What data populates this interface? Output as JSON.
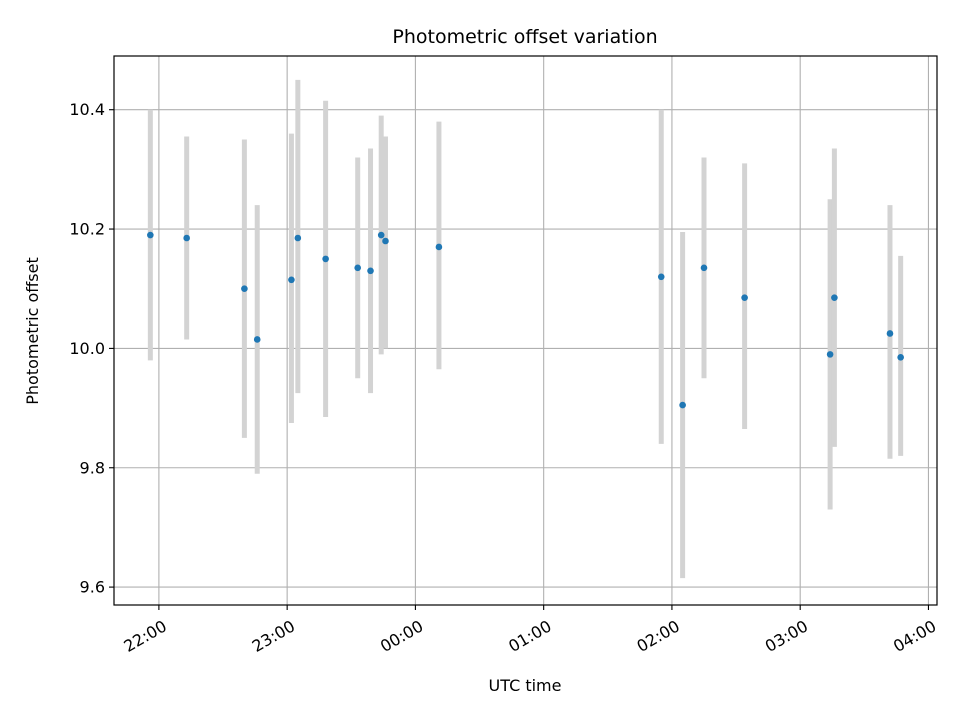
{
  "chart_data": {
    "type": "scatter",
    "title": "Photometric offset variation",
    "xlabel": "UTC time",
    "ylabel": "Photometric offset",
    "grid": true,
    "xlim": [
      "21:39",
      "04:04"
    ],
    "ylim": [
      9.57,
      10.49
    ],
    "x_ticks": [
      "22:00",
      "23:00",
      "00:00",
      "01:00",
      "02:00",
      "03:00",
      "04:00"
    ],
    "y_ticks": [
      9.6,
      9.8,
      10.0,
      10.2,
      10.4
    ],
    "colors": {
      "point": "#1f77b4",
      "errorbar": "#d3d3d3",
      "grid": "#b0b0b0"
    },
    "points": [
      {
        "x": "21:56",
        "y": 10.19,
        "ylow": 9.98,
        "yhigh": 10.4
      },
      {
        "x": "22:13",
        "y": 10.185,
        "ylow": 10.015,
        "yhigh": 10.355
      },
      {
        "x": "22:40",
        "y": 10.1,
        "ylow": 9.85,
        "yhigh": 10.35
      },
      {
        "x": "22:46",
        "y": 10.015,
        "ylow": 9.79,
        "yhigh": 10.24
      },
      {
        "x": "23:02",
        "y": 10.115,
        "ylow": 9.875,
        "yhigh": 10.36
      },
      {
        "x": "23:05",
        "y": 10.185,
        "ylow": 9.925,
        "yhigh": 10.45
      },
      {
        "x": "23:18",
        "y": 10.15,
        "ylow": 9.885,
        "yhigh": 10.415
      },
      {
        "x": "23:33",
        "y": 10.135,
        "ylow": 9.95,
        "yhigh": 10.32
      },
      {
        "x": "23:39",
        "y": 10.13,
        "ylow": 9.925,
        "yhigh": 10.335
      },
      {
        "x": "23:44",
        "y": 10.19,
        "ylow": 9.99,
        "yhigh": 10.39
      },
      {
        "x": "23:46",
        "y": 10.18,
        "ylow": 10.0,
        "yhigh": 10.355
      },
      {
        "x": "00:11",
        "y": 10.17,
        "ylow": 9.965,
        "yhigh": 10.38
      },
      {
        "x": "01:55",
        "y": 10.12,
        "ylow": 9.84,
        "yhigh": 10.4
      },
      {
        "x": "02:05",
        "y": 9.905,
        "ylow": 9.615,
        "yhigh": 10.195
      },
      {
        "x": "02:15",
        "y": 10.135,
        "ylow": 9.95,
        "yhigh": 10.32
      },
      {
        "x": "02:34",
        "y": 10.085,
        "ylow": 9.865,
        "yhigh": 10.31
      },
      {
        "x": "03:14",
        "y": 9.99,
        "ylow": 9.73,
        "yhigh": 10.25
      },
      {
        "x": "03:16",
        "y": 10.085,
        "ylow": 9.835,
        "yhigh": 10.335
      },
      {
        "x": "03:42",
        "y": 10.025,
        "ylow": 9.815,
        "yhigh": 10.24
      },
      {
        "x": "03:47",
        "y": 9.985,
        "ylow": 9.82,
        "yhigh": 10.155
      }
    ]
  }
}
